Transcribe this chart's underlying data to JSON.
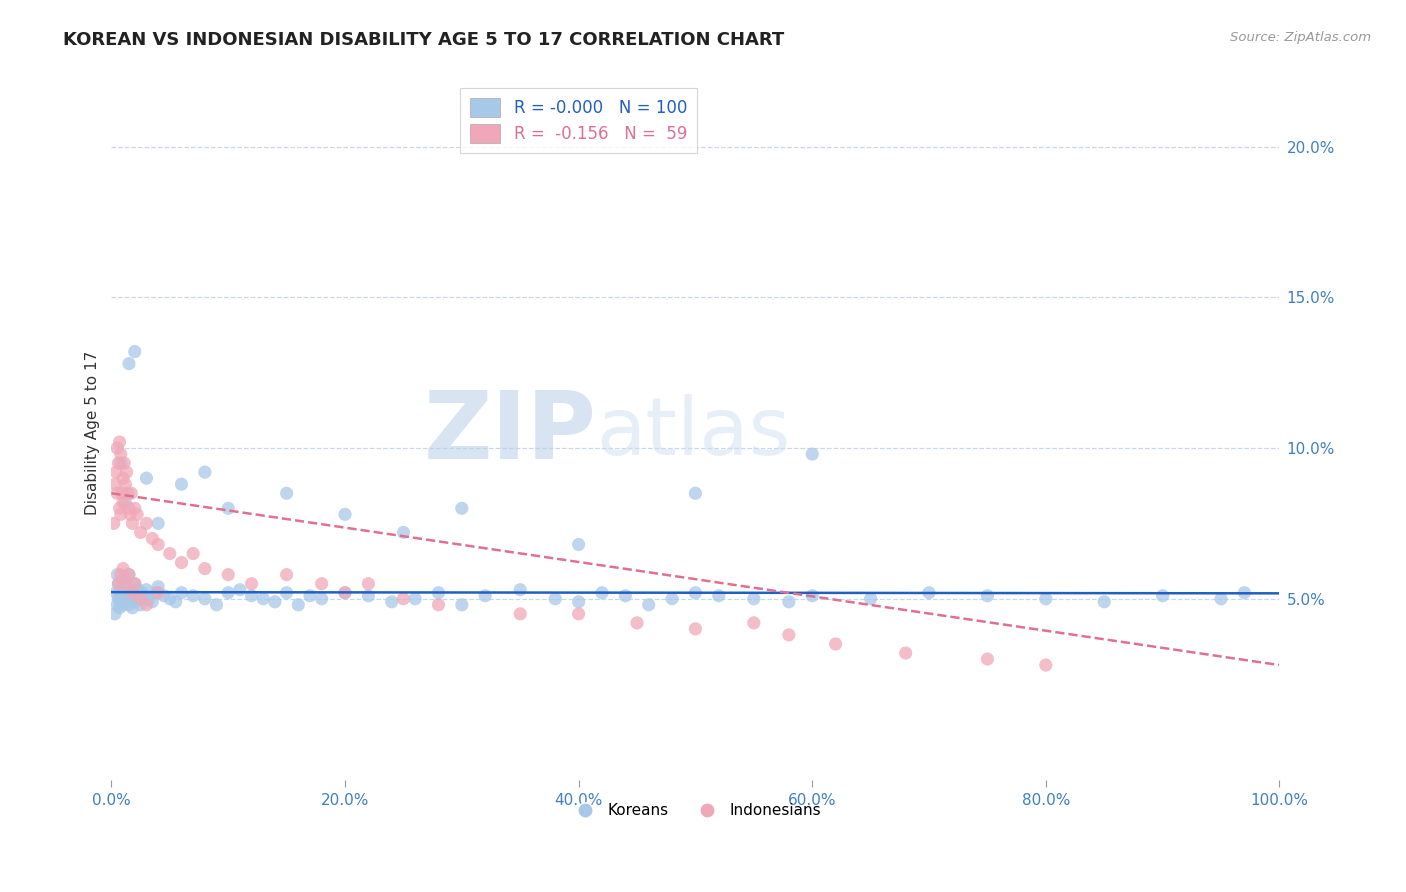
{
  "title": "KOREAN VS INDONESIAN DISABILITY AGE 5 TO 17 CORRELATION CHART",
  "source": "Source: ZipAtlas.com",
  "ylabel": "Disability Age 5 to 17",
  "watermark_bold": "ZIP",
  "watermark_light": "atlas",
  "korean_R": "-0.000",
  "korean_N": 100,
  "indonesian_R": "-0.156",
  "indonesian_N": 59,
  "xlim": [
    0,
    100
  ],
  "ylim": [
    -1,
    22
  ],
  "yticks": [
    5,
    10,
    15,
    20
  ],
  "ytick_labels": [
    "5.0%",
    "10.0%",
    "15.0%",
    "20.0%"
  ],
  "xticks": [
    0,
    20,
    40,
    60,
    80,
    100
  ],
  "xtick_labels": [
    "0.0%",
    "20.0%",
    "40.0%",
    "60.0%",
    "80.0%",
    "100.0%"
  ],
  "blue_color": "#A8C8E8",
  "pink_color": "#F0A8B8",
  "blue_line_color": "#2060C0",
  "pink_line_color": "#E07090",
  "axis_label_color": "#4080C0",
  "title_color": "#222222",
  "background_color": "#FFFFFF",
  "grid_color": "#C8D8EC",
  "korean_x": [
    0.3,
    0.4,
    0.5,
    0.5,
    0.6,
    0.6,
    0.7,
    0.7,
    0.8,
    0.8,
    0.9,
    0.9,
    1.0,
    1.0,
    1.1,
    1.1,
    1.2,
    1.2,
    1.3,
    1.3,
    1.4,
    1.5,
    1.5,
    1.6,
    1.7,
    1.8,
    1.8,
    1.9,
    2.0,
    2.0,
    2.2,
    2.3,
    2.4,
    2.5,
    2.6,
    2.8,
    3.0,
    3.2,
    3.5,
    3.8,
    4.0,
    4.5,
    5.0,
    5.5,
    6.0,
    7.0,
    8.0,
    9.0,
    10.0,
    11.0,
    12.0,
    13.0,
    14.0,
    15.0,
    16.0,
    17.0,
    18.0,
    20.0,
    22.0,
    24.0,
    26.0,
    28.0,
    30.0,
    32.0,
    35.0,
    38.0,
    40.0,
    42.0,
    44.0,
    46.0,
    48.0,
    50.0,
    52.0,
    55.0,
    58.0,
    60.0,
    65.0,
    70.0,
    75.0,
    80.0,
    85.0,
    90.0,
    95.0,
    97.0,
    0.8,
    1.2,
    1.5,
    2.0,
    3.0,
    4.0,
    6.0,
    8.0,
    10.0,
    15.0,
    20.0,
    25.0,
    30.0,
    40.0,
    50.0,
    60.0
  ],
  "korean_y": [
    4.5,
    5.2,
    5.8,
    4.8,
    5.0,
    5.5,
    5.2,
    4.7,
    5.3,
    4.9,
    5.1,
    5.6,
    5.0,
    4.8,
    5.3,
    5.7,
    5.1,
    4.9,
    5.4,
    5.0,
    5.2,
    5.8,
    4.8,
    5.1,
    5.3,
    5.0,
    4.7,
    5.2,
    5.5,
    4.9,
    5.1,
    5.3,
    5.0,
    4.8,
    5.2,
    5.1,
    5.3,
    5.0,
    4.9,
    5.2,
    5.4,
    5.1,
    5.0,
    4.9,
    5.2,
    5.1,
    5.0,
    4.8,
    5.2,
    5.3,
    5.1,
    5.0,
    4.9,
    5.2,
    4.8,
    5.1,
    5.0,
    5.2,
    5.1,
    4.9,
    5.0,
    5.2,
    4.8,
    5.1,
    5.3,
    5.0,
    4.9,
    5.2,
    5.1,
    4.8,
    5.0,
    5.2,
    5.1,
    5.0,
    4.9,
    5.1,
    5.0,
    5.2,
    5.1,
    5.0,
    4.9,
    5.1,
    5.0,
    5.2,
    9.5,
    8.2,
    12.8,
    13.2,
    9.0,
    7.5,
    8.8,
    9.2,
    8.0,
    8.5,
    7.8,
    7.2,
    8.0,
    6.8,
    8.5,
    9.8
  ],
  "indonesian_x": [
    0.2,
    0.3,
    0.4,
    0.5,
    0.5,
    0.6,
    0.7,
    0.7,
    0.8,
    0.8,
    0.9,
    1.0,
    1.0,
    1.1,
    1.2,
    1.3,
    1.4,
    1.5,
    1.6,
    1.7,
    1.8,
    2.0,
    2.2,
    2.5,
    3.0,
    3.5,
    4.0,
    5.0,
    6.0,
    7.0,
    8.0,
    10.0,
    12.0,
    15.0,
    18.0,
    20.0,
    22.0,
    25.0,
    28.0,
    35.0,
    40.0,
    45.0,
    50.0,
    55.0,
    58.0,
    62.0,
    68.0,
    75.0,
    80.0,
    0.6,
    0.8,
    1.0,
    1.2,
    1.5,
    1.8,
    2.0,
    2.5,
    3.0,
    4.0
  ],
  "indonesian_y": [
    7.5,
    8.8,
    9.2,
    10.0,
    8.5,
    9.5,
    10.2,
    8.0,
    9.8,
    7.8,
    8.5,
    9.0,
    8.2,
    9.5,
    8.8,
    9.2,
    8.5,
    8.0,
    7.8,
    8.5,
    7.5,
    8.0,
    7.8,
    7.2,
    7.5,
    7.0,
    6.8,
    6.5,
    6.2,
    6.5,
    6.0,
    5.8,
    5.5,
    5.8,
    5.5,
    5.2,
    5.5,
    5.0,
    4.8,
    4.5,
    4.5,
    4.2,
    4.0,
    4.2,
    3.8,
    3.5,
    3.2,
    3.0,
    2.8,
    5.5,
    5.8,
    6.0,
    5.5,
    5.8,
    5.2,
    5.5,
    5.0,
    4.8,
    5.2
  ],
  "korean_trend_x": [
    0,
    100
  ],
  "korean_trend_y": [
    5.22,
    5.18
  ],
  "indonesian_trend_x": [
    0,
    100
  ],
  "indonesian_trend_y": [
    8.5,
    2.8
  ]
}
